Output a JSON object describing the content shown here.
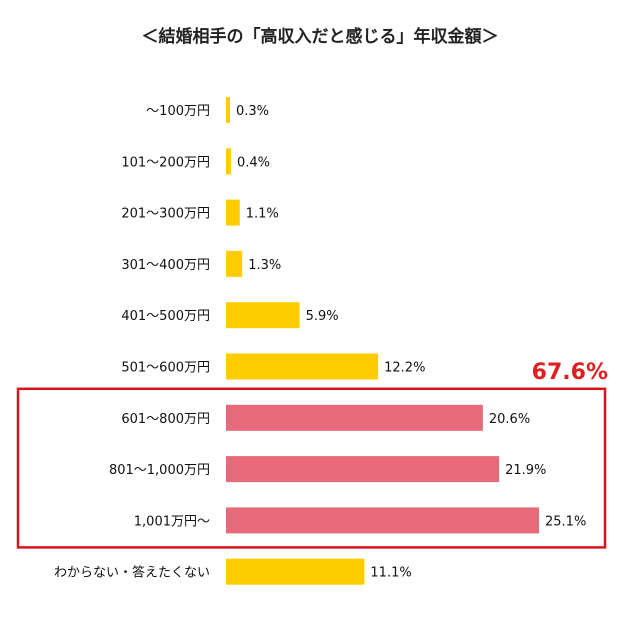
{
  "chart_data": {
    "type": "bar",
    "orientation": "horizontal",
    "title": "＜結婚相手の「高収入だと感じる」年収金額＞",
    "categories": [
      "～100万円",
      "101～200万円",
      "201～300万円",
      "301～400万円",
      "401～500万円",
      "501～600万円",
      "601～800万円",
      "801～1,000万円",
      "1,001万円～",
      "わからない・答えたくない"
    ],
    "values": [
      0.3,
      0.4,
      1.1,
      1.3,
      5.9,
      12.2,
      20.6,
      21.9,
      25.1,
      11.1
    ],
    "value_labels": [
      "0.3%",
      "0.4%",
      "1.1%",
      "1.3%",
      "5.9%",
      "12.2%",
      "20.6%",
      "21.9%",
      "25.1%",
      "11.1%"
    ],
    "highlight": {
      "indices": [
        6,
        7,
        8
      ],
      "total_label": "67.6%",
      "box_color": "#d8141e",
      "label_color": "#e02020"
    },
    "colors": {
      "default": "#ffcc00",
      "highlight": "#e86a7a"
    },
    "xlim": [
      0,
      25.1
    ],
    "grid": false
  }
}
